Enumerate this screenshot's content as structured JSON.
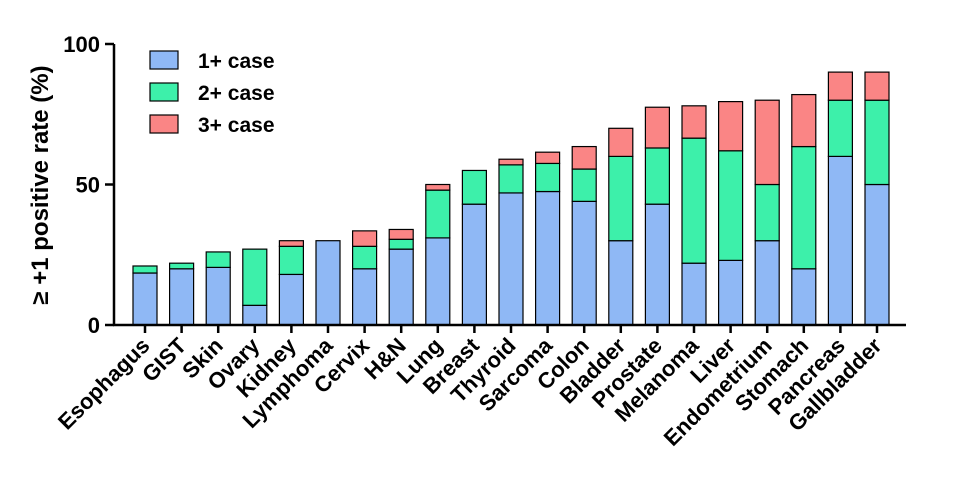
{
  "chart_data": {
    "type": "bar",
    "stacked": true,
    "ylabel": "≥ +1 positive rate (%)",
    "ylim": [
      0,
      100
    ],
    "yticks": [
      0,
      50,
      100
    ],
    "categories": [
      "Esophagus",
      "GIST",
      "Skin",
      "Ovary",
      "Kidney",
      "Lymphoma",
      "Cervix",
      "H&N",
      "Lung",
      "Breast",
      "Thyroid",
      "Sarcoma",
      "Colon",
      "Bladder",
      "Prostate",
      "Melanoma",
      "Liver",
      "Endometrium",
      "Stomach",
      "Pancreas",
      "Gallbladder"
    ],
    "series": [
      {
        "name": "1+ case",
        "color": "#8fb8f5",
        "values": [
          18.5,
          20,
          20.5,
          7,
          18,
          30,
          20,
          27,
          31,
          43,
          47,
          47.5,
          44,
          30,
          43,
          22,
          23,
          30,
          20,
          60,
          50
        ]
      },
      {
        "name": "2+ case",
        "color": "#3df0aa",
        "values": [
          2.5,
          2,
          5.5,
          20,
          10,
          0,
          8,
          3.5,
          17,
          12,
          10,
          10,
          11.5,
          30,
          20,
          44.5,
          39,
          20,
          43.5,
          20,
          30
        ]
      },
      {
        "name": "3+ case",
        "color": "#fa8585",
        "values": [
          0,
          0,
          0,
          0,
          2,
          0,
          5.5,
          3.5,
          2,
          0,
          2,
          4,
          8,
          10,
          14.5,
          11.5,
          17.5,
          30,
          18.5,
          10,
          10
        ]
      }
    ],
    "legend_position": "top-left"
  }
}
